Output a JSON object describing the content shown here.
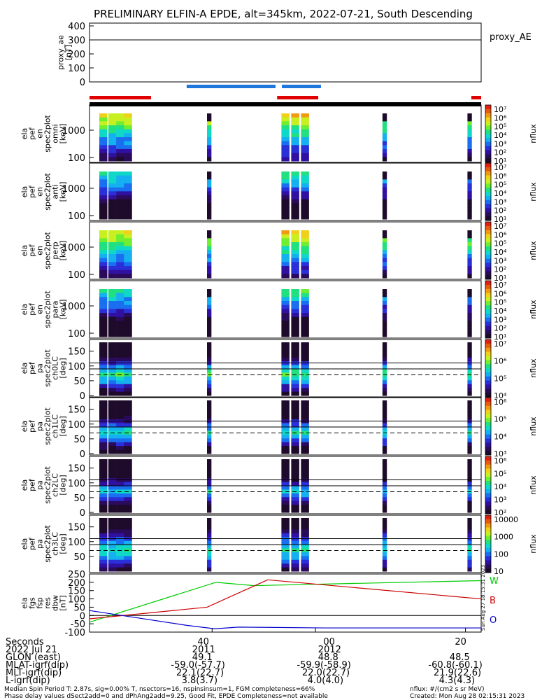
{
  "title": "PRELIMINARY ELFIN-A EPDE, alt=345km, 2022-07-21, South Descending",
  "proxy_panel": {
    "ylabel": [
      "proxy_ae",
      "[nT]"
    ],
    "legend": "proxy_AE",
    "yticks": [
      "400",
      "300",
      "200",
      "100",
      "0"
    ],
    "ylim": [
      0,
      420
    ],
    "value_nT": 300
  },
  "status_bars": {
    "red": [
      [
        0.0,
        0.157
      ],
      [
        0.479,
        0.584
      ],
      [
        0.975,
        1.0
      ]
    ],
    "blue": [
      [
        0.248,
        0.475
      ],
      [
        0.491,
        0.591
      ]
    ],
    "red_color": "#e00000",
    "blue_color": "#1e78dc"
  },
  "panels": [
    {
      "ylabel": [
        "ela",
        "pef",
        "en",
        "spec2plot",
        "omni",
        "[keV]"
      ],
      "yticks": [
        "1000",
        "100"
      ],
      "cbar_ticks": [
        "10⁷",
        "10⁶",
        "10⁵",
        "10⁴",
        "10³",
        "10²",
        "10¹"
      ],
      "cbar_label": "nflux"
    },
    {
      "ylabel": [
        "ela",
        "pef",
        "en",
        "spec2plot",
        "anti",
        "[keV]"
      ],
      "yticks": [
        "1000",
        "100"
      ],
      "cbar_ticks": [
        "10⁷",
        "10⁶",
        "10⁵",
        "10⁴",
        "10³",
        "10²",
        "10¹"
      ],
      "cbar_label": "nflux"
    },
    {
      "ylabel": [
        "ela",
        "pef",
        "en",
        "spec2plot",
        "perp",
        "[keV]"
      ],
      "yticks": [
        "1000",
        "100"
      ],
      "cbar_ticks": [
        "10⁷",
        "10⁶",
        "10⁵",
        "10⁴",
        "10³",
        "10²",
        "10¹"
      ],
      "cbar_label": "nflux"
    },
    {
      "ylabel": [
        "ela",
        "pef",
        "en",
        "spec2plot",
        "para",
        "[keV]"
      ],
      "yticks": [
        "1000",
        "100"
      ],
      "cbar_ticks": [
        "10⁷",
        "10⁶",
        "10⁵",
        "10⁴",
        "10³",
        "10²",
        "10¹"
      ],
      "cbar_label": "nflux"
    },
    {
      "ylabel": [
        "ela",
        "pef",
        "pa",
        "spec2plot",
        "ch0LC",
        "[deg]"
      ],
      "yticks": [
        "150",
        "100",
        "50",
        "0"
      ],
      "cbar_ticks": [
        "10⁷",
        "10⁶",
        "10⁵",
        "10⁴"
      ],
      "cbar_label": "nflux"
    },
    {
      "ylabel": [
        "ela",
        "pef",
        "pa",
        "spec2plot",
        "ch1LC",
        "[deg]"
      ],
      "yticks": [
        "150",
        "100",
        "50",
        "0"
      ],
      "cbar_ticks": [
        "10⁶",
        "10⁵",
        "10⁴",
        "10³"
      ],
      "cbar_label": "nflux"
    },
    {
      "ylabel": [
        "ela",
        "pef",
        "pa",
        "spec2plot",
        "ch2LC",
        "[deg]"
      ],
      "yticks": [
        "150",
        "100",
        "50",
        "0"
      ],
      "cbar_ticks": [
        "10⁶",
        "10⁵",
        "10⁴",
        "10³",
        "10²"
      ],
      "cbar_label": "nflux"
    },
    {
      "ylabel": [
        "ela",
        "pef",
        "pa",
        "spec2plot",
        "ch3LC",
        "[deg]"
      ],
      "yticks": [
        "150",
        "100",
        "50"
      ],
      "cbar_ticks": [
        "10000",
        "1000",
        "100",
        "10"
      ],
      "cbar_label": "nflux"
    }
  ],
  "chart_data": {
    "type": "line",
    "title": "PRELIMINARY ELFIN-A EPDE, alt=345km, 2022-07-21, South Descending",
    "ylabel": "ela fgs fsp res dbw [nT]",
    "ylim": [
      -100,
      250
    ],
    "yticks": [
      "250",
      "200",
      "150",
      "100",
      "50",
      "0",
      "-50",
      "-100"
    ],
    "x_ticks": [
      {
        "label": "40",
        "frac": 0.313
      },
      {
        "label": "00",
        "frac": 0.577
      },
      {
        "label": "20",
        "frac": 0.96
      }
    ],
    "series": [
      {
        "name": "W",
        "color": "#00cc00",
        "x": [
          0.0,
          0.323,
          0.42,
          1.0
        ],
        "y": [
          -40,
          200,
          180,
          210
        ]
      },
      {
        "name": "B",
        "color": "#cc0000",
        "x": [
          0.0,
          0.3,
          0.455,
          1.0
        ],
        "y": [
          -20,
          50,
          215,
          100
        ]
      },
      {
        "name": "O",
        "color": "#0000cc",
        "x": [
          0.0,
          0.25,
          0.32,
          0.38,
          0.6,
          1.0
        ],
        "y": [
          30,
          -60,
          -80,
          -70,
          -75,
          -75
        ]
      }
    ],
    "side_stamp": "Sun Aug 27 18:15:31 2023"
  },
  "footer": {
    "rows": [
      {
        "label": "Seconds",
        "cols": [
          "40",
          "00",
          "20"
        ]
      },
      {
        "label": "2022 Jul 21",
        "cols": [
          "2011",
          "2012",
          ""
        ]
      },
      {
        "label": "GLON (east)",
        "cols": [
          "49.1",
          "48.8",
          "48.5"
        ]
      },
      {
        "label": "MLAT-igrf(dip)",
        "cols": [
          "-59.0(-57.7)",
          "-59.9(-58.9)",
          "-60.8(-60.1)"
        ]
      },
      {
        "label": "MLT-igrf(dip)",
        "cols": [
          "22.1(22.7)",
          "22.0(22.7)",
          "21.9(22.6)"
        ]
      },
      {
        "label": "L-igrf(dip)",
        "cols": [
          "3.8(3.7)",
          "4.0(4.0)",
          "4.3(4.3)"
        ]
      }
    ],
    "note1": "Median Spin Period T: 2.87s, sig=0.00% T, nsectors=16, nspinsinsum=1, FGM completeness=66%",
    "note2": "Phase delay values dSect2add=0 and dPhAng2add=9.25, Good Fit, EPDE Completeness=not available",
    "units": "nflux: #/(cm2 s sr MeV)",
    "created": "Created: Mon Aug 28 02:15:31 2023"
  }
}
